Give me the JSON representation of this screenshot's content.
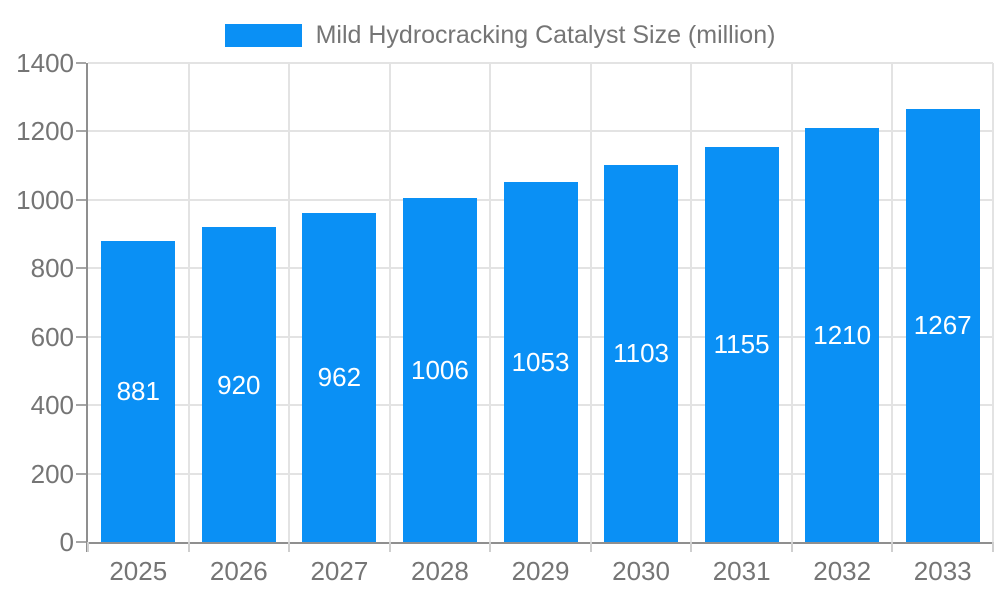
{
  "chart_data": {
    "type": "bar",
    "title": "",
    "series_name": "Mild Hydrocracking Catalyst Size (million)",
    "categories": [
      "2025",
      "2026",
      "2027",
      "2028",
      "2029",
      "2030",
      "2031",
      "2032",
      "2033"
    ],
    "values": [
      881,
      920,
      962,
      1006,
      1053,
      1103,
      1155,
      1210,
      1267
    ],
    "xlabel": "",
    "ylabel": "",
    "ylim": [
      0,
      1400
    ],
    "ytick_step": 200,
    "ytick_labels": [
      "0",
      "200",
      "400",
      "600",
      "800",
      "1000",
      "1200",
      "1400"
    ],
    "grid": true,
    "legend_position": "top",
    "bar_color": "#0a90f5",
    "value_label_color": "#ffffff",
    "axis_text_color": "#757575",
    "grid_color": "#e3e3e3",
    "axis_line_color": "#8f8f8f"
  }
}
